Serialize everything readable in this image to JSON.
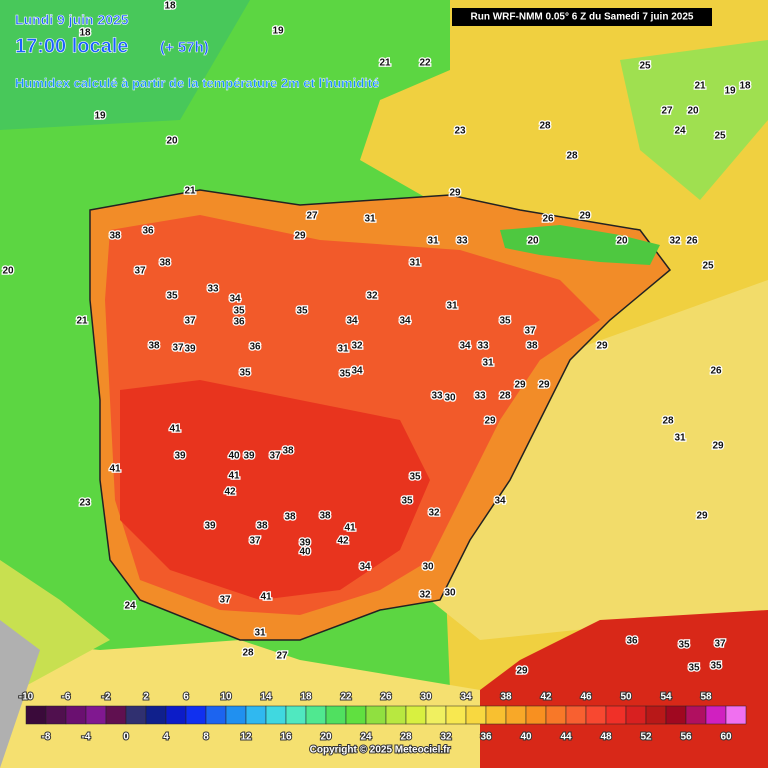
{
  "header": {
    "date": "Lundi 9 juin 2025",
    "time": "17:00 locale",
    "offset": "(+ 57h)",
    "description": "Humidex calculé à partir de la température 2m et l'humidité",
    "run": "Run WRF-NMM 0.05° 6 Z du Samedi 7 juin 2025"
  },
  "map_labels": [
    "18",
    "19",
    "18",
    "21",
    "22",
    "19",
    "20",
    "23",
    "28",
    "28",
    "25",
    "21",
    "19",
    "18",
    "27",
    "20",
    "24",
    "25",
    "21",
    "29",
    "31",
    "27",
    "29",
    "26",
    "29",
    "38",
    "36",
    "37",
    "38",
    "33",
    "34",
    "31",
    "33",
    "31",
    "32",
    "31",
    "20",
    "20",
    "32",
    "26",
    "25",
    "20",
    "21",
    "35",
    "37",
    "35",
    "36",
    "35",
    "34",
    "34",
    "35",
    "37",
    "34",
    "33",
    "38",
    "29",
    "38",
    "37",
    "39",
    "36",
    "31",
    "32",
    "35",
    "35",
    "34",
    "31",
    "26",
    "29",
    "29",
    "33",
    "30",
    "33",
    "28",
    "41",
    "29",
    "28",
    "31",
    "29",
    "41",
    "39",
    "40",
    "39",
    "37",
    "38",
    "41",
    "35",
    "42",
    "23",
    "35",
    "34",
    "32",
    "29",
    "39",
    "38",
    "38",
    "38",
    "41",
    "37",
    "42",
    "39",
    "40",
    "34",
    "30",
    "24",
    "41",
    "37",
    "32",
    "30",
    "31",
    "36",
    "35",
    "37",
    "35",
    "35",
    "29",
    "27",
    "28"
  ],
  "legend": {
    "colors": [
      "#3a0a3a",
      "#50104e",
      "#6a1070",
      "#801890",
      "#601050",
      "#303070",
      "#10208c",
      "#0c1cc8",
      "#1030f0",
      "#1c64f0",
      "#2090f0",
      "#30b8f0",
      "#40d8e0",
      "#50e8c0",
      "#50e890",
      "#50e060",
      "#60e040",
      "#90e040",
      "#b8e840",
      "#d8f040",
      "#f0f060",
      "#f8e850",
      "#f8d840",
      "#f8c030",
      "#f8a828",
      "#f89020",
      "#f87828",
      "#f86030",
      "#f84830",
      "#f03028",
      "#d82020",
      "#b81818",
      "#a00820",
      "#b01060",
      "#d020c0",
      "#f070f0"
    ],
    "top_labels": [
      "-10",
      "-6",
      "-2",
      "2",
      "6",
      "10",
      "14",
      "18",
      "22",
      "26",
      "30",
      "34",
      "38",
      "42",
      "46",
      "50",
      "54",
      "58"
    ],
    "bottom_labels": [
      "-8",
      "-4",
      "0",
      "4",
      "8",
      "12",
      "16",
      "20",
      "24",
      "28",
      "32",
      "36",
      "40",
      "44",
      "48",
      "52",
      "56",
      "60"
    ]
  },
  "copyright": "Copyright © 2025 Meteociel.fr"
}
